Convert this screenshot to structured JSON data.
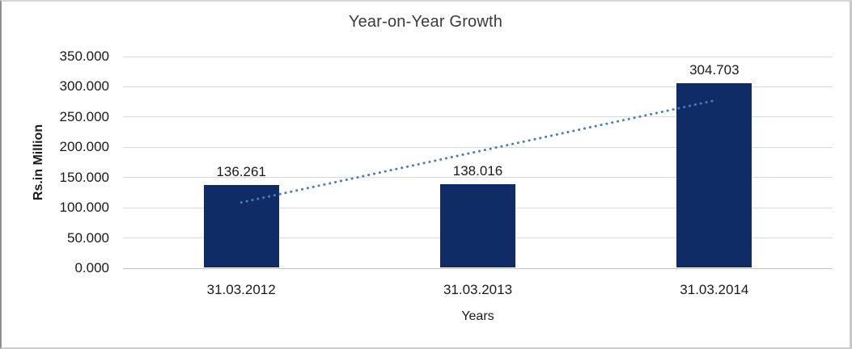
{
  "chart_data": {
    "type": "bar",
    "title": "Year-on-Year Growth",
    "xlabel": "Years",
    "ylabel": "Rs.in Million",
    "categories": [
      "31.03.2012",
      "31.03.2013",
      "31.03.2014"
    ],
    "values": [
      136.261,
      138.016,
      304.703
    ],
    "data_labels": [
      "136.261",
      "138.016",
      "304.703"
    ],
    "y_axis": {
      "min": 0,
      "max": 350,
      "step": 50,
      "tick_labels": [
        "350.000",
        "300.000",
        "250.000",
        "200.000",
        "150.000",
        "100.000",
        "50.000",
        "0.000"
      ]
    },
    "grid": true,
    "legend": "none",
    "colors": {
      "bar": "#102C66",
      "trendline": "#4A7EBB",
      "gridline": "#D9D9D9",
      "axis_line": "#C3C3C3",
      "label_text": "#1A1A1A",
      "title_text": "#3B3B3B",
      "background": "#FFFFFF"
    },
    "trendline": {
      "type": "linear",
      "style": "dotted",
      "start_value": 108.8,
      "end_value": 277.2
    }
  }
}
